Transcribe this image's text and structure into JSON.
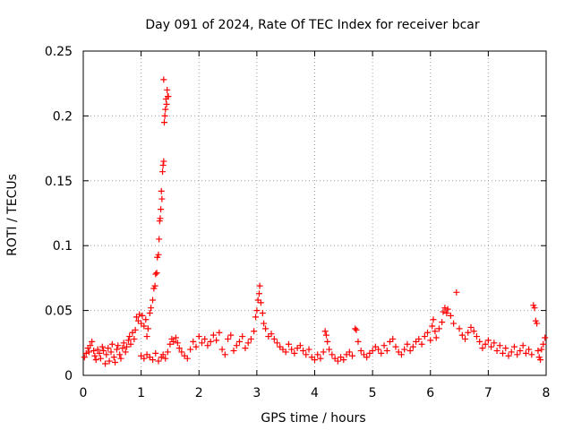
{
  "chart_data": {
    "type": "scatter",
    "title": "Day 091 of 2024, Rate Of TEC Index for receiver bcar",
    "xlabel": "GPS time / hours",
    "ylabel": "ROTI / TECUs",
    "xlim": [
      0,
      8
    ],
    "ylim": [
      0,
      0.25
    ],
    "x_ticks": [
      "0",
      "1",
      "2",
      "3",
      "4",
      "5",
      "6",
      "7",
      "8"
    ],
    "y_ticks": [
      "0",
      "0.05",
      "0.1",
      "0.15",
      "0.2",
      "0.25"
    ],
    "grid": true,
    "marker": "+",
    "series_color": "#ff0000",
    "series": [
      {
        "name": "ROTI",
        "points": [
          [
            0.02,
            0.014
          ],
          [
            0.05,
            0.017
          ],
          [
            0.08,
            0.021
          ],
          [
            0.1,
            0.018
          ],
          [
            0.12,
            0.023
          ],
          [
            0.15,
            0.026
          ],
          [
            0.18,
            0.019
          ],
          [
            0.2,
            0.015
          ],
          [
            0.22,
            0.012
          ],
          [
            0.25,
            0.02
          ],
          [
            0.28,
            0.017
          ],
          [
            0.3,
            0.013
          ],
          [
            0.33,
            0.022
          ],
          [
            0.35,
            0.019
          ],
          [
            0.38,
            0.009
          ],
          [
            0.4,
            0.016
          ],
          [
            0.43,
            0.021
          ],
          [
            0.45,
            0.011
          ],
          [
            0.48,
            0.018
          ],
          [
            0.5,
            0.024
          ],
          [
            0.53,
            0.014
          ],
          [
            0.55,
            0.01
          ],
          [
            0.58,
            0.02
          ],
          [
            0.6,
            0.023
          ],
          [
            0.63,
            0.016
          ],
          [
            0.65,
            0.013
          ],
          [
            0.68,
            0.021
          ],
          [
            0.7,
            0.025
          ],
          [
            0.73,
            0.018
          ],
          [
            0.75,
            0.022
          ],
          [
            0.78,
            0.027
          ],
          [
            0.8,
            0.03
          ],
          [
            0.82,
            0.024
          ],
          [
            0.85,
            0.033
          ],
          [
            0.88,
            0.028
          ],
          [
            0.9,
            0.035
          ],
          [
            0.92,
            0.045
          ],
          [
            0.95,
            0.042
          ],
          [
            0.97,
            0.047
          ],
          [
            1.0,
            0.04
          ],
          [
            1.02,
            0.046
          ],
          [
            1.05,
            0.038
          ],
          [
            1.08,
            0.043
          ],
          [
            1.1,
            0.03
          ],
          [
            1.12,
            0.036
          ],
          [
            1.15,
            0.048
          ],
          [
            1.17,
            0.052
          ],
          [
            1.2,
            0.058
          ],
          [
            1.22,
            0.067
          ],
          [
            1.24,
            0.069
          ],
          [
            1.25,
            0.078
          ],
          [
            1.27,
            0.079
          ],
          [
            1.28,
            0.091
          ],
          [
            1.3,
            0.093
          ],
          [
            1.31,
            0.105
          ],
          [
            1.32,
            0.119
          ],
          [
            1.33,
            0.121
          ],
          [
            1.34,
            0.128
          ],
          [
            1.35,
            0.142
          ],
          [
            1.36,
            0.136
          ],
          [
            1.37,
            0.157
          ],
          [
            1.38,
            0.162
          ],
          [
            1.39,
            0.165
          ],
          [
            1.4,
            0.195
          ],
          [
            1.41,
            0.2
          ],
          [
            1.42,
            0.205
          ],
          [
            1.43,
            0.213
          ],
          [
            1.44,
            0.209
          ],
          [
            1.45,
            0.22
          ],
          [
            1.46,
            0.215
          ],
          [
            1.47,
            0.215
          ],
          [
            1.39,
            0.228
          ],
          [
            1.0,
            0.015
          ],
          [
            1.05,
            0.013
          ],
          [
            1.1,
            0.016
          ],
          [
            1.15,
            0.014
          ],
          [
            1.2,
            0.012
          ],
          [
            1.25,
            0.017
          ],
          [
            1.3,
            0.011
          ],
          [
            1.35,
            0.014
          ],
          [
            1.38,
            0.016
          ],
          [
            1.42,
            0.013
          ],
          [
            1.46,
            0.018
          ],
          [
            1.5,
            0.024
          ],
          [
            1.53,
            0.028
          ],
          [
            1.56,
            0.026
          ],
          [
            1.6,
            0.029
          ],
          [
            1.63,
            0.025
          ],
          [
            1.66,
            0.021
          ],
          [
            1.7,
            0.018
          ],
          [
            1.75,
            0.015
          ],
          [
            1.8,
            0.013
          ],
          [
            1.85,
            0.02
          ],
          [
            1.9,
            0.026
          ],
          [
            1.95,
            0.022
          ],
          [
            2.0,
            0.03
          ],
          [
            2.05,
            0.025
          ],
          [
            2.1,
            0.028
          ],
          [
            2.15,
            0.023
          ],
          [
            2.2,
            0.026
          ],
          [
            2.25,
            0.031
          ],
          [
            2.3,
            0.027
          ],
          [
            2.35,
            0.033
          ],
          [
            2.4,
            0.02
          ],
          [
            2.45,
            0.016
          ],
          [
            2.5,
            0.028
          ],
          [
            2.55,
            0.031
          ],
          [
            2.6,
            0.019
          ],
          [
            2.65,
            0.023
          ],
          [
            2.7,
            0.026
          ],
          [
            2.75,
            0.03
          ],
          [
            2.8,
            0.021
          ],
          [
            2.85,
            0.025
          ],
          [
            2.9,
            0.028
          ],
          [
            2.95,
            0.034
          ],
          [
            2.98,
            0.045
          ],
          [
            3.0,
            0.05
          ],
          [
            3.02,
            0.058
          ],
          [
            3.04,
            0.063
          ],
          [
            3.05,
            0.069
          ],
          [
            3.07,
            0.056
          ],
          [
            3.1,
            0.048
          ],
          [
            3.12,
            0.04
          ],
          [
            3.15,
            0.036
          ],
          [
            3.2,
            0.03
          ],
          [
            3.25,
            0.032
          ],
          [
            3.3,
            0.028
          ],
          [
            3.35,
            0.025
          ],
          [
            3.4,
            0.022
          ],
          [
            3.45,
            0.02
          ],
          [
            3.5,
            0.018
          ],
          [
            3.55,
            0.024
          ],
          [
            3.6,
            0.02
          ],
          [
            3.65,
            0.017
          ],
          [
            3.7,
            0.021
          ],
          [
            3.75,
            0.023
          ],
          [
            3.8,
            0.019
          ],
          [
            3.85,
            0.016
          ],
          [
            3.9,
            0.02
          ],
          [
            3.95,
            0.014
          ],
          [
            4.0,
            0.012
          ],
          [
            4.05,
            0.016
          ],
          [
            4.1,
            0.013
          ],
          [
            4.15,
            0.018
          ],
          [
            4.18,
            0.034
          ],
          [
            4.2,
            0.031
          ],
          [
            4.22,
            0.026
          ],
          [
            4.25,
            0.02
          ],
          [
            4.3,
            0.016
          ],
          [
            4.35,
            0.013
          ],
          [
            4.4,
            0.011
          ],
          [
            4.45,
            0.014
          ],
          [
            4.5,
            0.012
          ],
          [
            4.55,
            0.016
          ],
          [
            4.6,
            0.018
          ],
          [
            4.65,
            0.015
          ],
          [
            4.7,
            0.036
          ],
          [
            4.72,
            0.035
          ],
          [
            4.75,
            0.026
          ],
          [
            4.8,
            0.019
          ],
          [
            4.85,
            0.016
          ],
          [
            4.9,
            0.014
          ],
          [
            4.95,
            0.017
          ],
          [
            5.0,
            0.019
          ],
          [
            5.05,
            0.022
          ],
          [
            5.1,
            0.02
          ],
          [
            5.15,
            0.017
          ],
          [
            5.2,
            0.023
          ],
          [
            5.25,
            0.019
          ],
          [
            5.3,
            0.026
          ],
          [
            5.35,
            0.028
          ],
          [
            5.4,
            0.022
          ],
          [
            5.45,
            0.018
          ],
          [
            5.5,
            0.016
          ],
          [
            5.55,
            0.02
          ],
          [
            5.6,
            0.024
          ],
          [
            5.65,
            0.019
          ],
          [
            5.7,
            0.022
          ],
          [
            5.75,
            0.026
          ],
          [
            5.8,
            0.028
          ],
          [
            5.85,
            0.024
          ],
          [
            5.9,
            0.03
          ],
          [
            5.95,
            0.033
          ],
          [
            6.0,
            0.027
          ],
          [
            6.03,
            0.038
          ],
          [
            6.05,
            0.043
          ],
          [
            6.08,
            0.034
          ],
          [
            6.1,
            0.029
          ],
          [
            6.15,
            0.036
          ],
          [
            6.2,
            0.041
          ],
          [
            6.22,
            0.049
          ],
          [
            6.25,
            0.052
          ],
          [
            6.28,
            0.048
          ],
          [
            6.3,
            0.051
          ],
          [
            6.35,
            0.046
          ],
          [
            6.4,
            0.04
          ],
          [
            6.45,
            0.064
          ],
          [
            6.5,
            0.036
          ],
          [
            6.55,
            0.031
          ],
          [
            6.6,
            0.028
          ],
          [
            6.65,
            0.033
          ],
          [
            6.7,
            0.037
          ],
          [
            6.75,
            0.034
          ],
          [
            6.8,
            0.03
          ],
          [
            6.85,
            0.026
          ],
          [
            6.9,
            0.021
          ],
          [
            6.95,
            0.024
          ],
          [
            7.0,
            0.027
          ],
          [
            7.05,
            0.022
          ],
          [
            7.1,
            0.025
          ],
          [
            7.15,
            0.019
          ],
          [
            7.2,
            0.023
          ],
          [
            7.25,
            0.017
          ],
          [
            7.3,
            0.021
          ],
          [
            7.35,
            0.015
          ],
          [
            7.4,
            0.018
          ],
          [
            7.45,
            0.022
          ],
          [
            7.5,
            0.016
          ],
          [
            7.55,
            0.019
          ],
          [
            7.6,
            0.023
          ],
          [
            7.65,
            0.017
          ],
          [
            7.7,
            0.02
          ],
          [
            7.75,
            0.016
          ],
          [
            7.78,
            0.054
          ],
          [
            7.8,
            0.052
          ],
          [
            7.82,
            0.042
          ],
          [
            7.84,
            0.04
          ],
          [
            7.86,
            0.019
          ],
          [
            7.88,
            0.014
          ],
          [
            7.9,
            0.012
          ],
          [
            7.92,
            0.02
          ],
          [
            7.95,
            0.024
          ],
          [
            7.98,
            0.029
          ]
        ]
      }
    ]
  }
}
